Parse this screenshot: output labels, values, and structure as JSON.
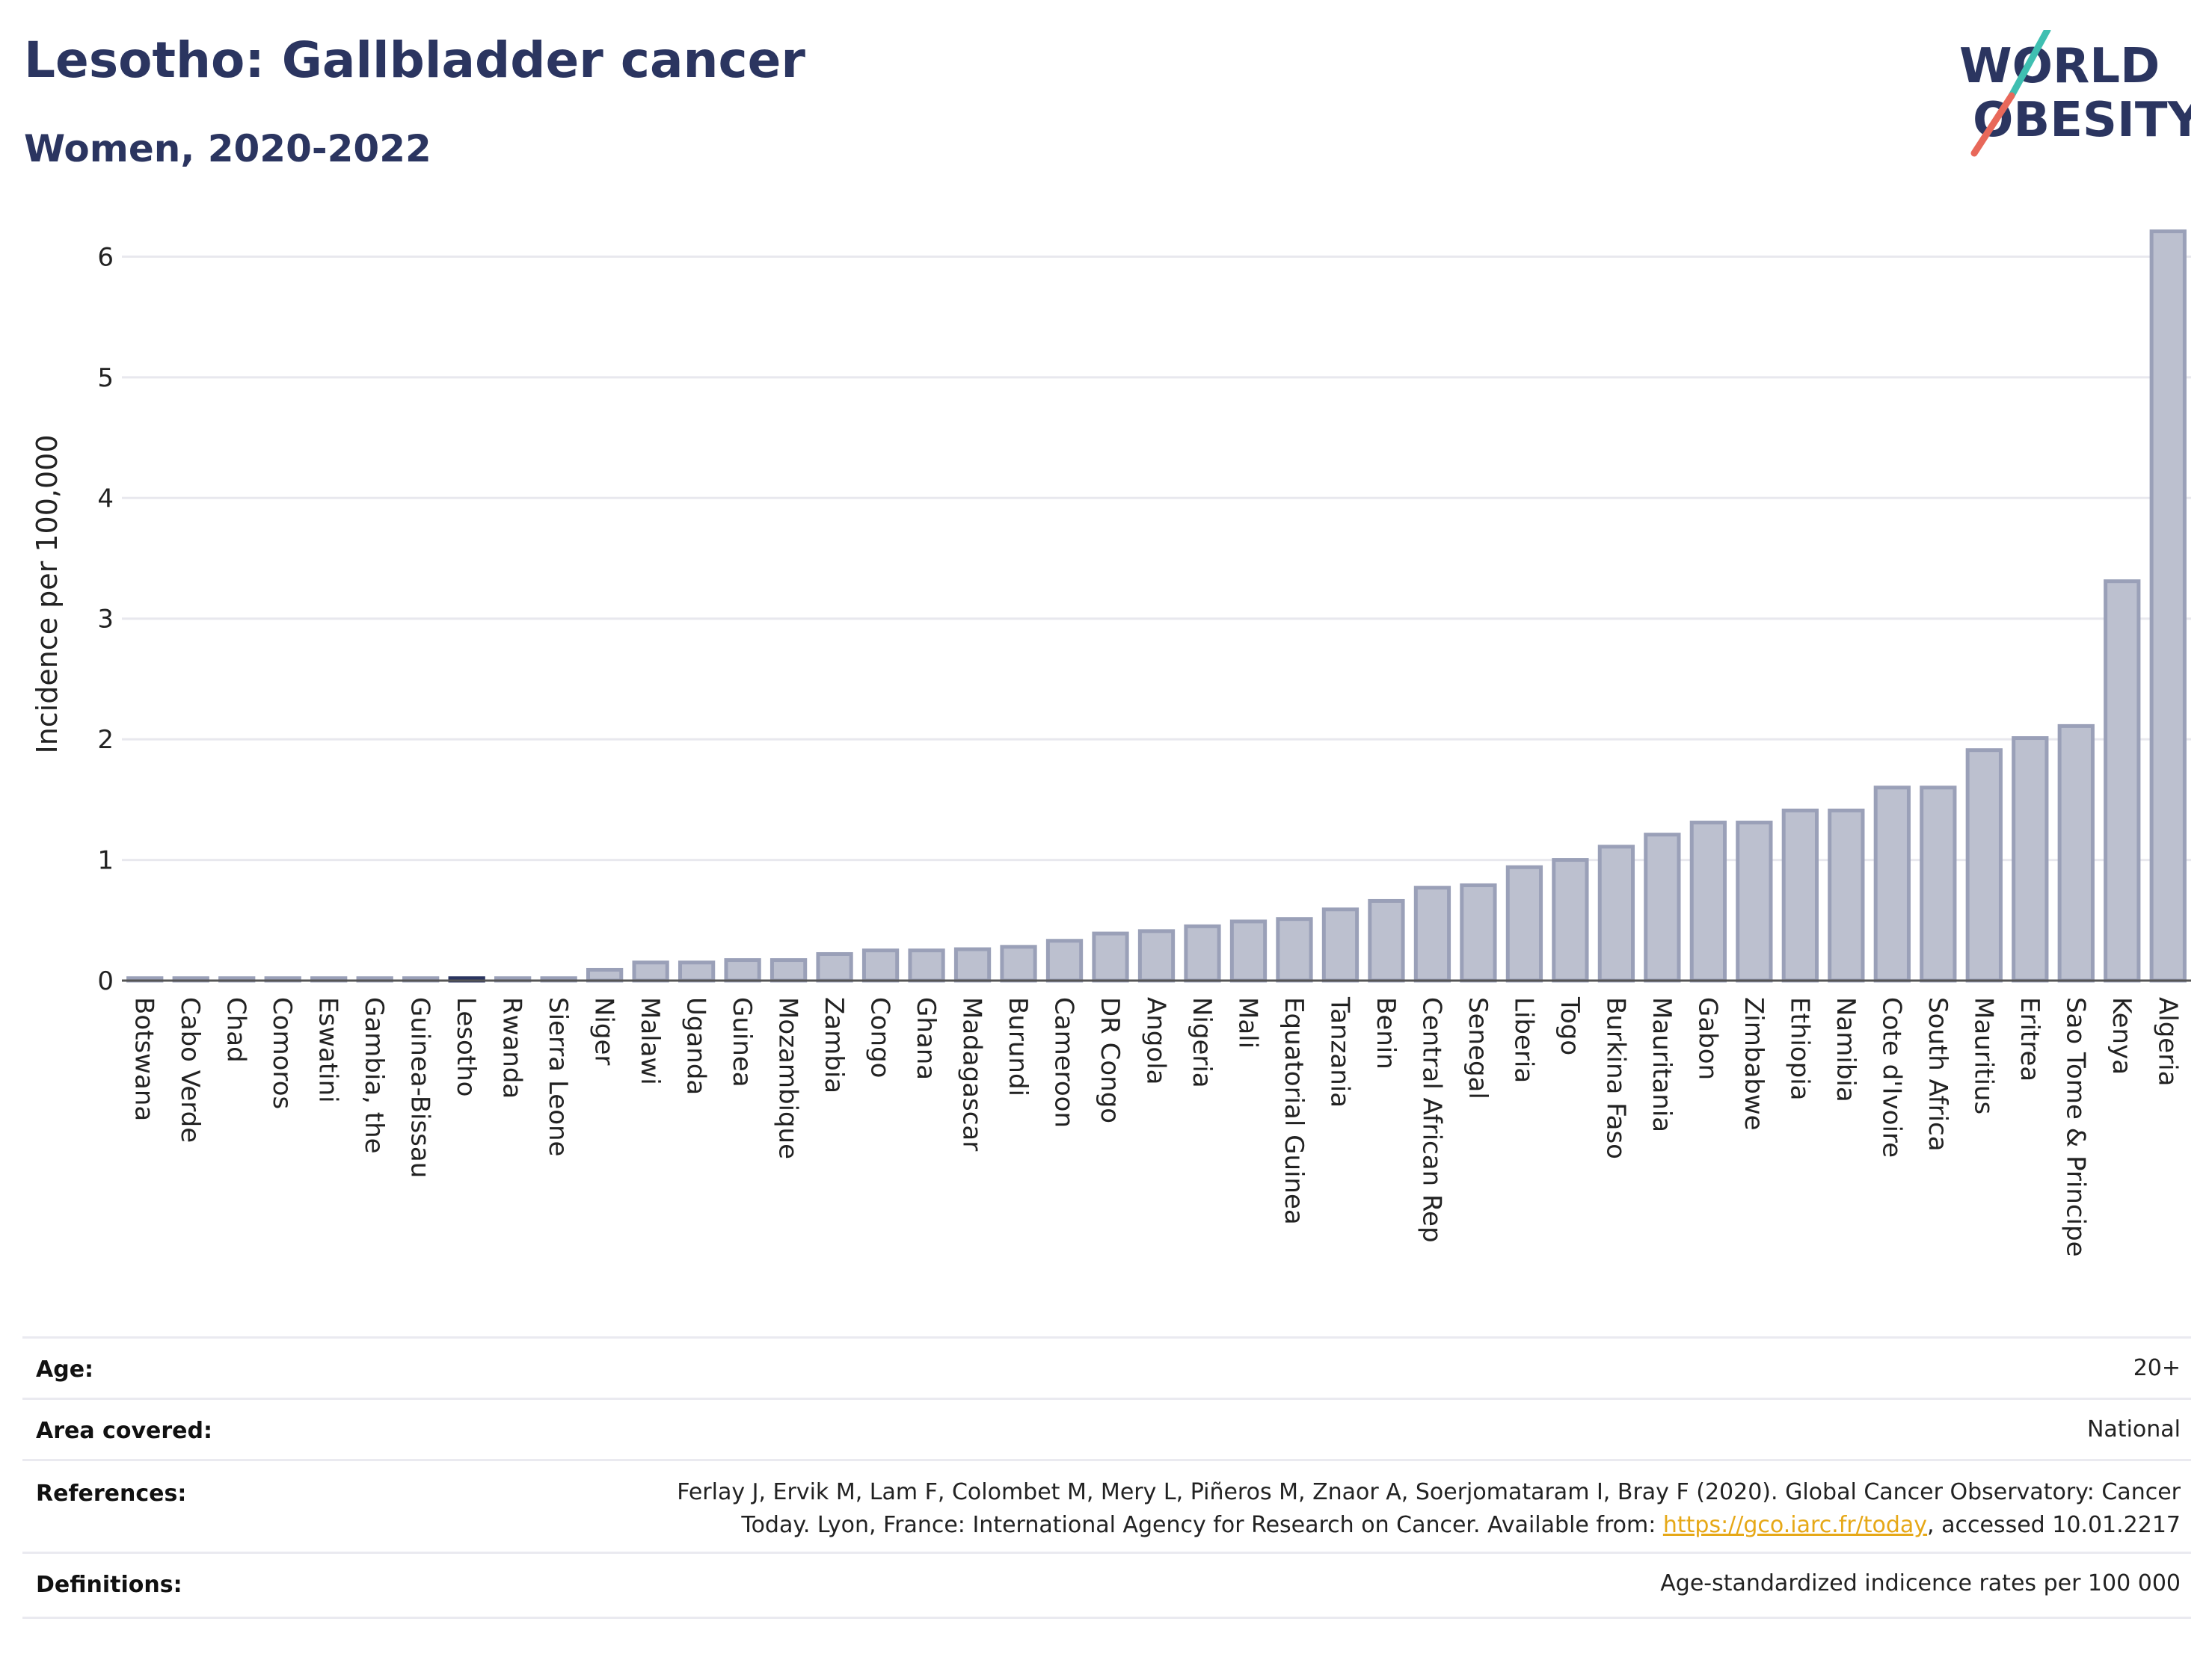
{
  "header": {
    "title": "Lesotho: Gallbladder cancer",
    "subtitle": "Women, 2020-2022"
  },
  "logo": {
    "line1": "WORLD",
    "line2": "OBESITY"
  },
  "colors": {
    "bar": "#bcc0cf",
    "bar_stroke": "#9aa0b8",
    "highlight": "#2b3560",
    "title": "#2b3560",
    "grid": "#e8e8ee"
  },
  "chart_data": {
    "type": "bar",
    "title": "Lesotho: Gallbladder cancer",
    "subtitle": "Women, 2020-2022",
    "xlabel": "",
    "ylabel": "Incidence per 100,000",
    "ylim": [
      0,
      6.3
    ],
    "yticks": [
      0,
      1,
      2,
      3,
      4,
      5,
      6
    ],
    "grid": true,
    "highlight": "Lesotho",
    "categories": [
      "Botswana",
      "Cabo Verde",
      "Chad",
      "Comoros",
      "Eswatini",
      "Gambia, the",
      "Guinea-Bissau",
      "Lesotho",
      "Rwanda",
      "Sierra Leone",
      "Niger",
      "Malawi",
      "Uganda",
      "Guinea",
      "Mozambique",
      "Zambia",
      "Congo",
      "Ghana",
      "Madagascar",
      "Burundi",
      "Cameroon",
      "DR Congo",
      "Angola",
      "Nigeria",
      "Mali",
      "Equatorial Guinea",
      "Tanzania",
      "Benin",
      "Central African Rep",
      "Senegal",
      "Liberia",
      "Togo",
      "Burkina Faso",
      "Mauritania",
      "Gabon",
      "Zimbabwe",
      "Ethiopia",
      "Namibia",
      "Cote d'Ivoire",
      "South Africa",
      "Mauritius",
      "Eritrea",
      "Sao Tome & Principe",
      "Kenya",
      "Algeria"
    ],
    "values": [
      0.02,
      0.02,
      0.02,
      0.02,
      0.02,
      0.02,
      0.02,
      0.02,
      0.02,
      0.02,
      0.09,
      0.15,
      0.15,
      0.17,
      0.17,
      0.22,
      0.25,
      0.25,
      0.26,
      0.28,
      0.33,
      0.39,
      0.41,
      0.45,
      0.49,
      0.51,
      0.59,
      0.66,
      0.77,
      0.79,
      0.94,
      1.0,
      1.11,
      1.21,
      1.31,
      1.31,
      1.41,
      1.41,
      1.6,
      1.6,
      1.91,
      2.01,
      2.11,
      3.31,
      6.21
    ]
  },
  "meta": {
    "age_label": "Age:",
    "age_value": "20+",
    "area_label": "Area covered:",
    "area_value": "National",
    "references_label": "References:",
    "references_line1": "Ferlay J, Ervik M, Lam F, Colombet M, Mery L, Piñeros M, Znaor A, Soerjomataram I, Bray F (2020). Global Cancer Observatory: Cancer",
    "references_line2_pre": "Today. Lyon, France: International Agency for Research on Cancer. Available from: ",
    "references_link": "https://gco.iarc.fr/today",
    "references_line2_post": ", accessed 10.01.2217",
    "definitions_label": "Definitions:",
    "definitions_value": "Age-standardized indicence rates per 100 000"
  }
}
